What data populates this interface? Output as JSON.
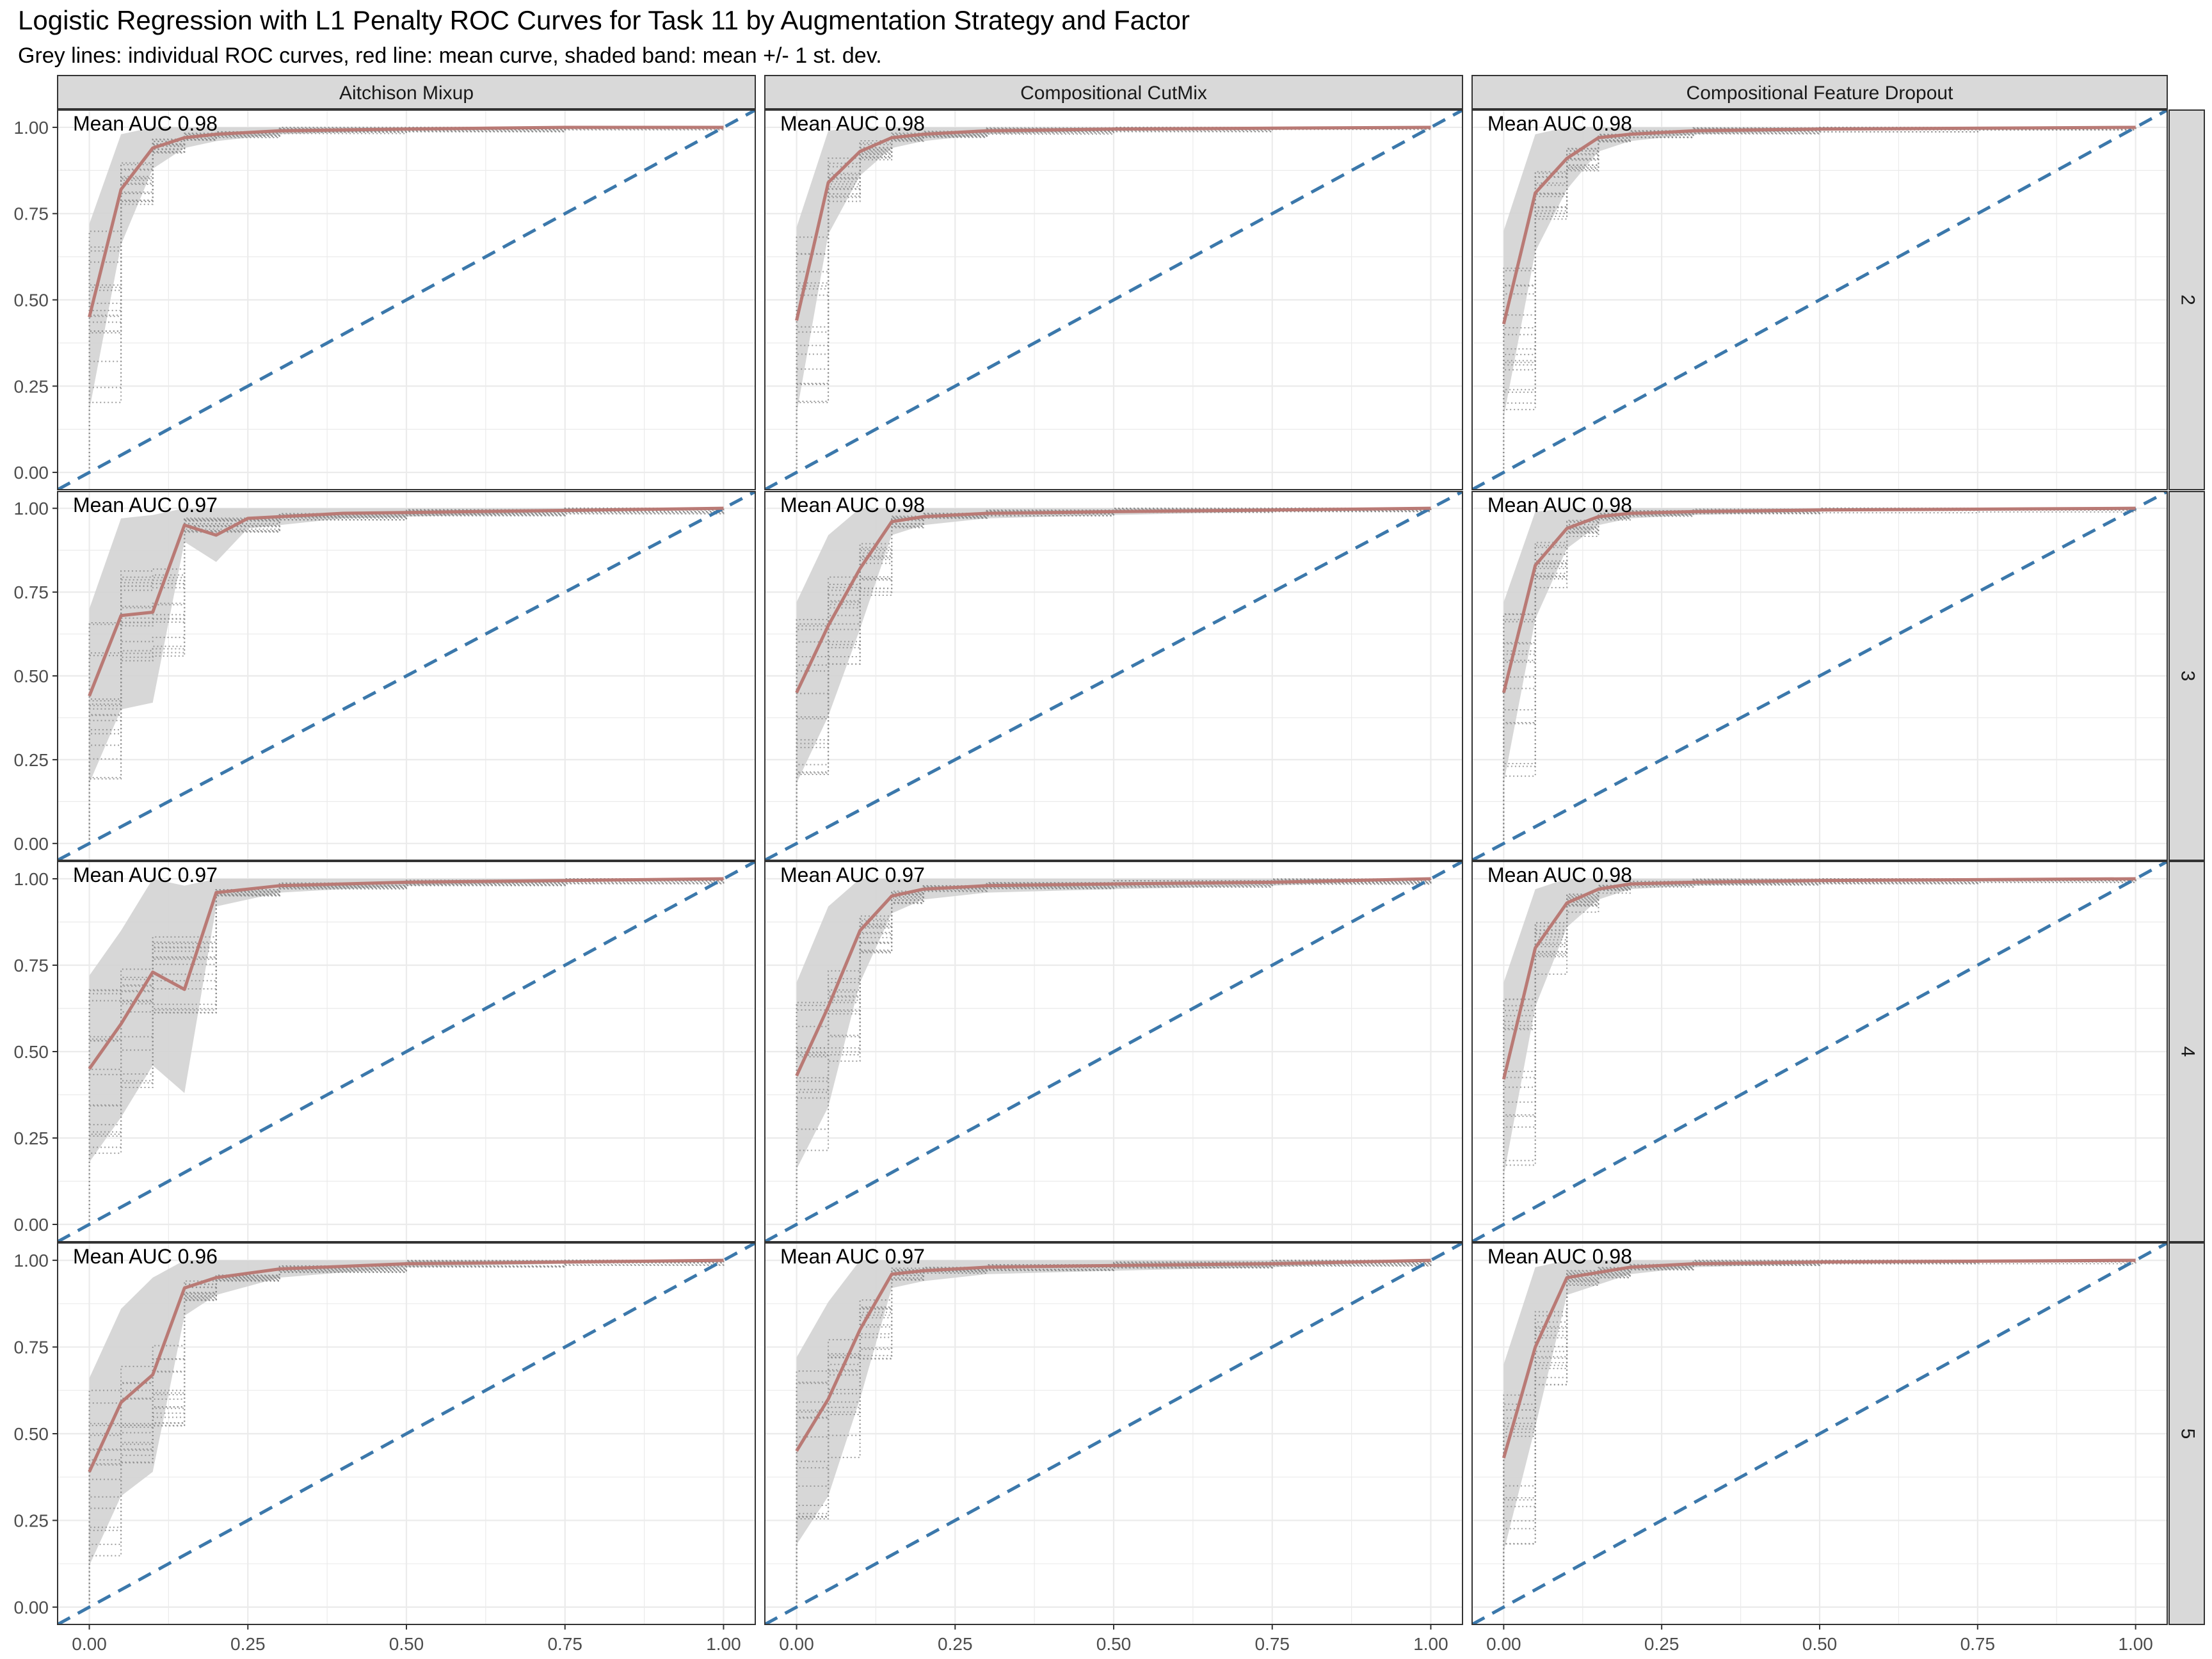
{
  "figure": {
    "title": "Logistic Regression with L1 Penalty ROC Curves for Task 11 by Augmentation Strategy and Factor",
    "subtitle": "Grey lines: individual ROC curves, red line: mean curve, shaded band: mean +/- 1 st. dev."
  },
  "colors": {
    "mean_line": "#b97a75",
    "diagonal": "#3b78ab",
    "band": "#d3d3d3",
    "individual": "#8c8c8c",
    "strip": "#d9d9d9",
    "grid": "#ebebeb"
  },
  "chart_data": {
    "type": "line",
    "facet_columns": [
      "Aitchison Mixup",
      "Compositional CutMix",
      "Compositional Feature Dropout"
    ],
    "facet_rows": [
      "2",
      "3",
      "4",
      "5"
    ],
    "x_ticks": [
      "0.00",
      "0.25",
      "0.50",
      "0.75",
      "1.00"
    ],
    "y_ticks": [
      "0.00",
      "0.25",
      "0.50",
      "0.75",
      "1.00"
    ],
    "xlim": [
      0,
      1
    ],
    "ylim": [
      0,
      1
    ],
    "grid": true,
    "diagonal": "dashed reference line y = x",
    "panels": [
      {
        "row": "2",
        "col": "Aitchison Mixup",
        "auc_label": "Mean AUC 0.98",
        "mean": [
          [
            0,
            0.45
          ],
          [
            0.05,
            0.82
          ],
          [
            0.1,
            0.94
          ],
          [
            0.15,
            0.97
          ],
          [
            0.2,
            0.98
          ],
          [
            0.3,
            0.99
          ],
          [
            0.5,
            0.995
          ],
          [
            0.75,
            1.0
          ],
          [
            1,
            1.0
          ]
        ],
        "upper": [
          [
            0,
            0.72
          ],
          [
            0.05,
            0.98
          ],
          [
            0.1,
            1.0
          ],
          [
            0.2,
            1.0
          ],
          [
            1,
            1.0
          ]
        ],
        "lower": [
          [
            0,
            0.18
          ],
          [
            0.05,
            0.66
          ],
          [
            0.1,
            0.88
          ],
          [
            0.15,
            0.94
          ],
          [
            0.2,
            0.96
          ],
          [
            0.3,
            0.98
          ],
          [
            0.5,
            0.99
          ],
          [
            1,
            1.0
          ]
        ]
      },
      {
        "row": "2",
        "col": "Compositional CutMix",
        "auc_label": "Mean AUC 0.98",
        "mean": [
          [
            0,
            0.44
          ],
          [
            0.05,
            0.84
          ],
          [
            0.1,
            0.93
          ],
          [
            0.15,
            0.97
          ],
          [
            0.2,
            0.98
          ],
          [
            0.3,
            0.99
          ],
          [
            0.5,
            0.995
          ],
          [
            1,
            1.0
          ]
        ],
        "upper": [
          [
            0,
            0.71
          ],
          [
            0.05,
            0.99
          ],
          [
            0.1,
            1.0
          ],
          [
            1,
            1.0
          ]
        ],
        "lower": [
          [
            0,
            0.17
          ],
          [
            0.05,
            0.69
          ],
          [
            0.1,
            0.86
          ],
          [
            0.15,
            0.94
          ],
          [
            0.2,
            0.96
          ],
          [
            0.3,
            0.98
          ],
          [
            0.5,
            0.99
          ],
          [
            1,
            1.0
          ]
        ]
      },
      {
        "row": "2",
        "col": "Compositional Feature Dropout",
        "auc_label": "Mean AUC 0.98",
        "mean": [
          [
            0,
            0.43
          ],
          [
            0.05,
            0.81
          ],
          [
            0.1,
            0.91
          ],
          [
            0.15,
            0.97
          ],
          [
            0.2,
            0.98
          ],
          [
            0.3,
            0.99
          ],
          [
            0.5,
            0.995
          ],
          [
            1,
            1.0
          ]
        ],
        "upper": [
          [
            0,
            0.7
          ],
          [
            0.05,
            0.98
          ],
          [
            0.1,
            1.0
          ],
          [
            1,
            1.0
          ]
        ],
        "lower": [
          [
            0,
            0.16
          ],
          [
            0.05,
            0.64
          ],
          [
            0.1,
            0.82
          ],
          [
            0.15,
            0.93
          ],
          [
            0.2,
            0.96
          ],
          [
            0.3,
            0.98
          ],
          [
            0.5,
            0.99
          ],
          [
            1,
            1.0
          ]
        ]
      },
      {
        "row": "3",
        "col": "Aitchison Mixup",
        "auc_label": "Mean AUC 0.97",
        "mean": [
          [
            0,
            0.44
          ],
          [
            0.05,
            0.68
          ],
          [
            0.1,
            0.69
          ],
          [
            0.15,
            0.95
          ],
          [
            0.2,
            0.92
          ],
          [
            0.25,
            0.97
          ],
          [
            0.4,
            0.985
          ],
          [
            0.6,
            0.99
          ],
          [
            1,
            1.0
          ]
        ],
        "upper": [
          [
            0,
            0.7
          ],
          [
            0.05,
            0.97
          ],
          [
            0.1,
            0.98
          ],
          [
            0.15,
            1.0
          ],
          [
            1,
            1.0
          ]
        ],
        "lower": [
          [
            0,
            0.18
          ],
          [
            0.05,
            0.4
          ],
          [
            0.1,
            0.42
          ],
          [
            0.15,
            0.9
          ],
          [
            0.2,
            0.84
          ],
          [
            0.25,
            0.94
          ],
          [
            0.4,
            0.97
          ],
          [
            0.6,
            0.98
          ],
          [
            1,
            1.0
          ]
        ]
      },
      {
        "row": "3",
        "col": "Compositional CutMix",
        "auc_label": "Mean AUC 0.98",
        "mean": [
          [
            0,
            0.45
          ],
          [
            0.05,
            0.65
          ],
          [
            0.1,
            0.82
          ],
          [
            0.15,
            0.96
          ],
          [
            0.2,
            0.975
          ],
          [
            0.3,
            0.985
          ],
          [
            0.5,
            0.99
          ],
          [
            1,
            1.0
          ]
        ],
        "upper": [
          [
            0,
            0.72
          ],
          [
            0.05,
            0.92
          ],
          [
            0.1,
            1.0
          ],
          [
            1,
            1.0
          ]
        ],
        "lower": [
          [
            0,
            0.18
          ],
          [
            0.05,
            0.38
          ],
          [
            0.1,
            0.64
          ],
          [
            0.15,
            0.92
          ],
          [
            0.2,
            0.95
          ],
          [
            0.3,
            0.97
          ],
          [
            0.5,
            0.98
          ],
          [
            1,
            1.0
          ]
        ]
      },
      {
        "row": "3",
        "col": "Compositional Feature Dropout",
        "auc_label": "Mean AUC 0.98",
        "mean": [
          [
            0,
            0.45
          ],
          [
            0.05,
            0.83
          ],
          [
            0.1,
            0.94
          ],
          [
            0.15,
            0.975
          ],
          [
            0.2,
            0.985
          ],
          [
            0.3,
            0.99
          ],
          [
            0.5,
            0.995
          ],
          [
            1,
            1.0
          ]
        ],
        "upper": [
          [
            0,
            0.72
          ],
          [
            0.05,
            0.99
          ],
          [
            0.1,
            1.0
          ],
          [
            1,
            1.0
          ]
        ],
        "lower": [
          [
            0,
            0.18
          ],
          [
            0.05,
            0.67
          ],
          [
            0.1,
            0.88
          ],
          [
            0.15,
            0.95
          ],
          [
            0.2,
            0.97
          ],
          [
            0.3,
            0.98
          ],
          [
            0.5,
            0.99
          ],
          [
            1,
            1.0
          ]
        ]
      },
      {
        "row": "4",
        "col": "Aitchison Mixup",
        "auc_label": "Mean AUC 0.97",
        "mean": [
          [
            0,
            0.45
          ],
          [
            0.05,
            0.58
          ],
          [
            0.1,
            0.73
          ],
          [
            0.15,
            0.68
          ],
          [
            0.2,
            0.96
          ],
          [
            0.3,
            0.98
          ],
          [
            0.5,
            0.99
          ],
          [
            0.75,
            0.995
          ],
          [
            1,
            1.0
          ]
        ],
        "upper": [
          [
            0,
            0.72
          ],
          [
            0.05,
            0.85
          ],
          [
            0.1,
            1.0
          ],
          [
            0.15,
            0.98
          ],
          [
            0.2,
            1.0
          ],
          [
            1,
            1.0
          ]
        ],
        "lower": [
          [
            0,
            0.18
          ],
          [
            0.05,
            0.31
          ],
          [
            0.1,
            0.46
          ],
          [
            0.15,
            0.38
          ],
          [
            0.2,
            0.92
          ],
          [
            0.3,
            0.96
          ],
          [
            0.5,
            0.98
          ],
          [
            0.75,
            0.99
          ],
          [
            1,
            1.0
          ]
        ]
      },
      {
        "row": "4",
        "col": "Compositional CutMix",
        "auc_label": "Mean AUC 0.97",
        "mean": [
          [
            0,
            0.43
          ],
          [
            0.05,
            0.63
          ],
          [
            0.1,
            0.85
          ],
          [
            0.15,
            0.95
          ],
          [
            0.2,
            0.97
          ],
          [
            0.3,
            0.98
          ],
          [
            0.5,
            0.985
          ],
          [
            0.75,
            0.99
          ],
          [
            1,
            1.0
          ]
        ],
        "upper": [
          [
            0,
            0.7
          ],
          [
            0.05,
            0.92
          ],
          [
            0.1,
            1.0
          ],
          [
            1,
            1.0
          ]
        ],
        "lower": [
          [
            0,
            0.16
          ],
          [
            0.05,
            0.34
          ],
          [
            0.1,
            0.7
          ],
          [
            0.15,
            0.9
          ],
          [
            0.2,
            0.94
          ],
          [
            0.3,
            0.96
          ],
          [
            0.5,
            0.97
          ],
          [
            0.75,
            0.98
          ],
          [
            1,
            1.0
          ]
        ]
      },
      {
        "row": "4",
        "col": "Compositional Feature Dropout",
        "auc_label": "Mean AUC 0.98",
        "mean": [
          [
            0,
            0.42
          ],
          [
            0.05,
            0.8
          ],
          [
            0.1,
            0.93
          ],
          [
            0.15,
            0.97
          ],
          [
            0.2,
            0.985
          ],
          [
            0.3,
            0.99
          ],
          [
            0.5,
            0.995
          ],
          [
            1,
            1.0
          ]
        ],
        "upper": [
          [
            0,
            0.7
          ],
          [
            0.05,
            0.97
          ],
          [
            0.1,
            1.0
          ],
          [
            1,
            1.0
          ]
        ],
        "lower": [
          [
            0,
            0.14
          ],
          [
            0.05,
            0.63
          ],
          [
            0.1,
            0.86
          ],
          [
            0.15,
            0.94
          ],
          [
            0.2,
            0.97
          ],
          [
            0.3,
            0.98
          ],
          [
            0.5,
            0.99
          ],
          [
            1,
            1.0
          ]
        ]
      },
      {
        "row": "5",
        "col": "Aitchison Mixup",
        "auc_label": "Mean AUC 0.96",
        "mean": [
          [
            0,
            0.39
          ],
          [
            0.05,
            0.59
          ],
          [
            0.1,
            0.67
          ],
          [
            0.15,
            0.92
          ],
          [
            0.2,
            0.95
          ],
          [
            0.3,
            0.975
          ],
          [
            0.5,
            0.99
          ],
          [
            0.75,
            0.995
          ],
          [
            1,
            1.0
          ]
        ],
        "upper": [
          [
            0,
            0.66
          ],
          [
            0.05,
            0.86
          ],
          [
            0.1,
            0.95
          ],
          [
            0.15,
            1.0
          ],
          [
            1,
            1.0
          ]
        ],
        "lower": [
          [
            0,
            0.12
          ],
          [
            0.05,
            0.32
          ],
          [
            0.1,
            0.39
          ],
          [
            0.15,
            0.84
          ],
          [
            0.2,
            0.9
          ],
          [
            0.3,
            0.95
          ],
          [
            0.5,
            0.98
          ],
          [
            0.75,
            0.99
          ],
          [
            1,
            1.0
          ]
        ]
      },
      {
        "row": "5",
        "col": "Compositional CutMix",
        "auc_label": "Mean AUC 0.97",
        "mean": [
          [
            0,
            0.45
          ],
          [
            0.05,
            0.6
          ],
          [
            0.1,
            0.8
          ],
          [
            0.15,
            0.96
          ],
          [
            0.2,
            0.97
          ],
          [
            0.3,
            0.98
          ],
          [
            0.5,
            0.985
          ],
          [
            0.75,
            0.99
          ],
          [
            1,
            1.0
          ]
        ],
        "upper": [
          [
            0,
            0.72
          ],
          [
            0.05,
            0.88
          ],
          [
            0.1,
            1.0
          ],
          [
            1,
            1.0
          ]
        ],
        "lower": [
          [
            0,
            0.18
          ],
          [
            0.05,
            0.32
          ],
          [
            0.1,
            0.6
          ],
          [
            0.15,
            0.92
          ],
          [
            0.2,
            0.94
          ],
          [
            0.3,
            0.96
          ],
          [
            0.5,
            0.97
          ],
          [
            0.75,
            0.98
          ],
          [
            1,
            1.0
          ]
        ]
      },
      {
        "row": "5",
        "col": "Compositional Feature Dropout",
        "auc_label": "Mean AUC 0.98",
        "mean": [
          [
            0,
            0.43
          ],
          [
            0.05,
            0.75
          ],
          [
            0.1,
            0.95
          ],
          [
            0.15,
            0.965
          ],
          [
            0.2,
            0.98
          ],
          [
            0.3,
            0.99
          ],
          [
            0.5,
            0.995
          ],
          [
            1,
            1.0
          ]
        ],
        "upper": [
          [
            0,
            0.7
          ],
          [
            0.05,
            0.98
          ],
          [
            0.1,
            1.0
          ],
          [
            1,
            1.0
          ]
        ],
        "lower": [
          [
            0,
            0.16
          ],
          [
            0.05,
            0.52
          ],
          [
            0.1,
            0.9
          ],
          [
            0.15,
            0.93
          ],
          [
            0.2,
            0.96
          ],
          [
            0.3,
            0.98
          ],
          [
            0.5,
            0.99
          ],
          [
            1,
            1.0
          ]
        ]
      }
    ]
  }
}
